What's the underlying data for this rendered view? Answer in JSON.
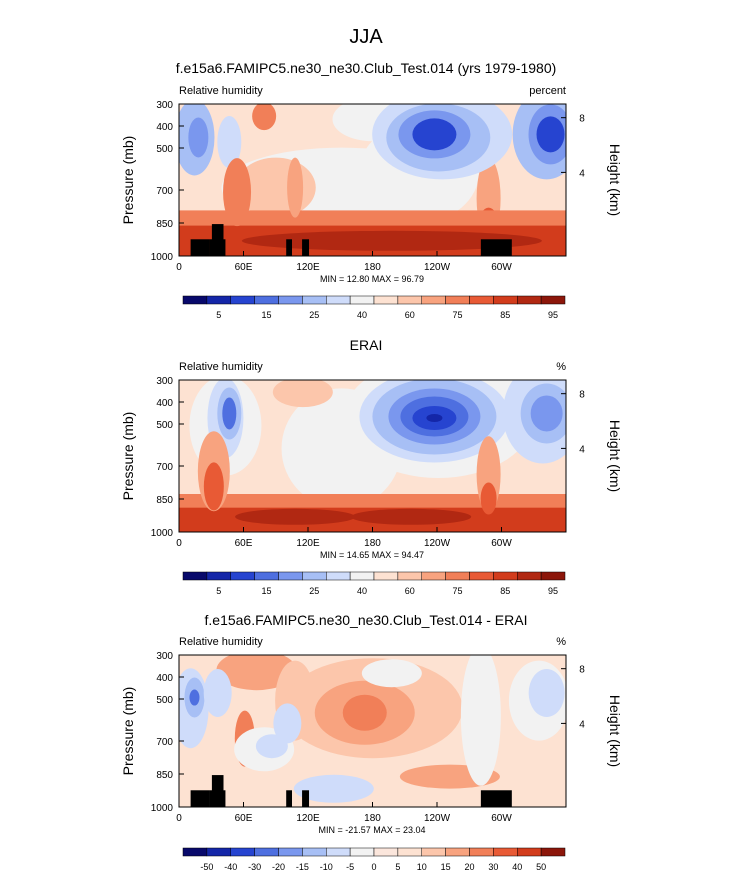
{
  "page": {
    "title": "JJA"
  },
  "colors": {
    "frame": "#000000",
    "topography": "#000000"
  },
  "chart_data": [
    {
      "type": "heatmap",
      "title": "f.e15a6.FAMIPC5.ne30_ne30.Club_Test.014 (yrs 1979-1980)",
      "left_string": "Relative humidity",
      "right_string": "percent",
      "ylabel": "Pressure (mb)",
      "right_axis_label": "Height (km)",
      "x_ticks": [
        "0",
        "60E",
        "120E",
        "180",
        "120W",
        "60W"
      ],
      "y_ticks": [
        "300",
        "400",
        "500",
        "700",
        "850",
        "1000"
      ],
      "height_ticks": [
        "8",
        "4"
      ],
      "stats": "MIN =  12.80  MAX =  96.79",
      "colorbar": {
        "labels": [
          "5",
          "15",
          "25",
          "40",
          "60",
          "75",
          "85",
          "95"
        ],
        "colors": [
          "#08096b",
          "#1426a8",
          "#2644d0",
          "#4e6fe0",
          "#7a97ee",
          "#a7bff5",
          "#cfdcfa",
          "#f2f2f2",
          "#fde2d2",
          "#fcc6ab",
          "#f8a37f",
          "#f17f58",
          "#e85a35",
          "#d23c1c",
          "#b12812",
          "#8c160a"
        ]
      }
    },
    {
      "type": "heatmap",
      "title": "ERAI",
      "left_string": "Relative humidity",
      "right_string": "%",
      "ylabel": "Pressure (mb)",
      "right_axis_label": "Height (km)",
      "x_ticks": [
        "0",
        "60E",
        "120E",
        "180",
        "120W",
        "60W"
      ],
      "y_ticks": [
        "300",
        "400",
        "500",
        "700",
        "850",
        "1000"
      ],
      "height_ticks": [
        "8",
        "4"
      ],
      "stats": "MIN =  14.65  MAX =  94.47",
      "colorbar": {
        "labels": [
          "5",
          "15",
          "25",
          "40",
          "60",
          "75",
          "85",
          "95"
        ],
        "colors": [
          "#08096b",
          "#1426a8",
          "#2644d0",
          "#4e6fe0",
          "#7a97ee",
          "#a7bff5",
          "#cfdcfa",
          "#f2f2f2",
          "#fde2d2",
          "#fcc6ab",
          "#f8a37f",
          "#f17f58",
          "#e85a35",
          "#d23c1c",
          "#b12812",
          "#8c160a"
        ]
      }
    },
    {
      "type": "heatmap",
      "title": "f.e15a6.FAMIPC5.ne30_ne30.Club_Test.014 - ERAI",
      "left_string": "Relative humidity",
      "right_string": "%",
      "ylabel": "Pressure (mb)",
      "right_axis_label": "Height (km)",
      "x_ticks": [
        "0",
        "60E",
        "120E",
        "180",
        "120W",
        "60W"
      ],
      "y_ticks": [
        "300",
        "400",
        "500",
        "700",
        "850",
        "1000"
      ],
      "height_ticks": [
        "8",
        "4"
      ],
      "stats": "MIN = -21.57  MAX =  23.04",
      "colorbar": {
        "labels": [
          "-50",
          "-40",
          "-30",
          "-20",
          "-15",
          "-10",
          "-5",
          "0",
          "5",
          "10",
          "15",
          "20",
          "30",
          "40",
          "50"
        ],
        "colors": [
          "#08096b",
          "#1426a8",
          "#2644d0",
          "#4e6fe0",
          "#7a97ee",
          "#a7bff5",
          "#cfdcfa",
          "#f2f2f2",
          "#fbe6dc",
          "#fde2d2",
          "#fcc6ab",
          "#f8a37f",
          "#f17f58",
          "#e85a35",
          "#d23c1c",
          "#8c160a"
        ]
      }
    }
  ]
}
